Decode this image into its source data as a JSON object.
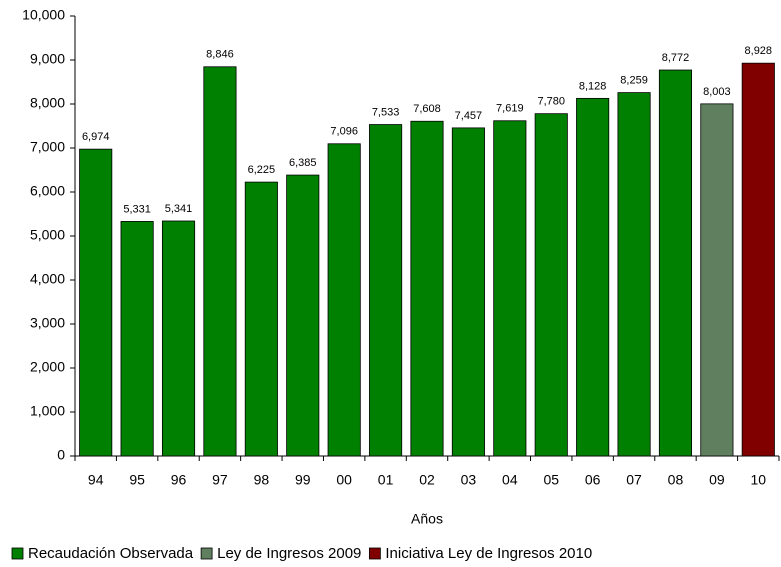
{
  "chart_data": {
    "type": "bar",
    "x_label": "Años",
    "categories": [
      "94",
      "95",
      "96",
      "97",
      "98",
      "99",
      "00",
      "01",
      "02",
      "03",
      "04",
      "05",
      "06",
      "07",
      "08",
      "09",
      "10"
    ],
    "series": [
      {
        "name": "Recaudación Observada",
        "color": "#008000",
        "values": [
          6974,
          5331,
          5341,
          8846,
          6225,
          6385,
          7096,
          7533,
          7608,
          7457,
          7619,
          7780,
          8128,
          8259,
          8772,
          null,
          null
        ],
        "value_labels": [
          "6,974",
          "5,331",
          "5,341",
          "8,846",
          "6,225",
          "6,385",
          "7,096",
          "7,533",
          "7,608",
          "7,457",
          "7,619",
          "7,780",
          "8,128",
          "8,259",
          "8,772",
          null,
          null
        ]
      },
      {
        "name": "Ley de Ingresos 2009",
        "color": "#5f7f5f",
        "values": [
          null,
          null,
          null,
          null,
          null,
          null,
          null,
          null,
          null,
          null,
          null,
          null,
          null,
          null,
          null,
          8003,
          null
        ],
        "value_labels": [
          null,
          null,
          null,
          null,
          null,
          null,
          null,
          null,
          null,
          null,
          null,
          null,
          null,
          null,
          null,
          "8,003",
          null
        ]
      },
      {
        "name": "Iniciativa Ley de Ingresos 2010",
        "color": "#800000",
        "values": [
          null,
          null,
          null,
          null,
          null,
          null,
          null,
          null,
          null,
          null,
          null,
          null,
          null,
          null,
          null,
          null,
          8928
        ],
        "value_labels": [
          null,
          null,
          null,
          null,
          null,
          null,
          null,
          null,
          null,
          null,
          null,
          null,
          null,
          null,
          null,
          null,
          "8,928"
        ]
      }
    ],
    "ylim": [
      0,
      10000
    ],
    "yticks": [
      0,
      {
        "value": 1000,
        "label": "1,000"
      },
      {
        "value": 2000,
        "label": "2,000"
      },
      {
        "value": 3000,
        "label": "3,000"
      },
      {
        "value": 4000,
        "label": "4,000"
      },
      {
        "value": 5000,
        "label": "5,000"
      },
      {
        "value": 6000,
        "label": "6,000"
      },
      {
        "value": 7000,
        "label": "7,000"
      },
      {
        "value": 8000,
        "label": "8,000"
      },
      {
        "value": 9000,
        "label": "9,000"
      },
      {
        "value": 10000,
        "label": "10,000"
      }
    ],
    "legend": "bottom"
  }
}
